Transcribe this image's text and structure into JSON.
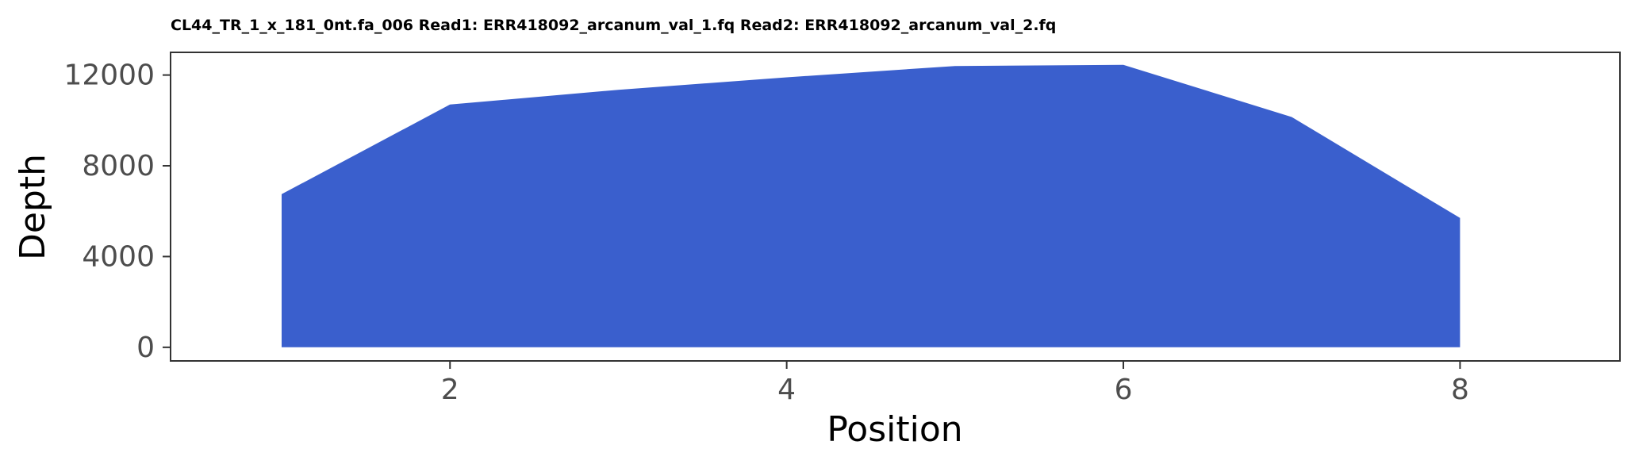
{
  "chart_data": {
    "type": "area",
    "title": "CL44_TR_1_x_181_0nt.fa_006 Read1: ERR418092_arcanum_val_1.fq Read2: ERR418092_arcanum_val_2.fq",
    "xlabel": "Position",
    "ylabel": "Depth",
    "x": [
      1,
      2,
      3,
      4,
      5,
      6,
      7,
      8
    ],
    "series": [
      {
        "values": [
          6750,
          10700,
          11350,
          11900,
          12400,
          12450,
          10150,
          5700
        ]
      }
    ],
    "xlim": [
      0.34,
      8.95
    ],
    "ylim": [
      -600,
      13000
    ],
    "x_ticks": [
      2,
      4,
      6,
      8
    ],
    "x_tick_labels": [
      "2",
      "4",
      "6",
      "8"
    ],
    "y_ticks": [
      0,
      4000,
      8000,
      12000
    ],
    "y_tick_labels": [
      "0",
      "4000",
      "8000",
      "12000"
    ],
    "grid": false,
    "legend": "none",
    "fill_color": "#3a5fcd"
  }
}
